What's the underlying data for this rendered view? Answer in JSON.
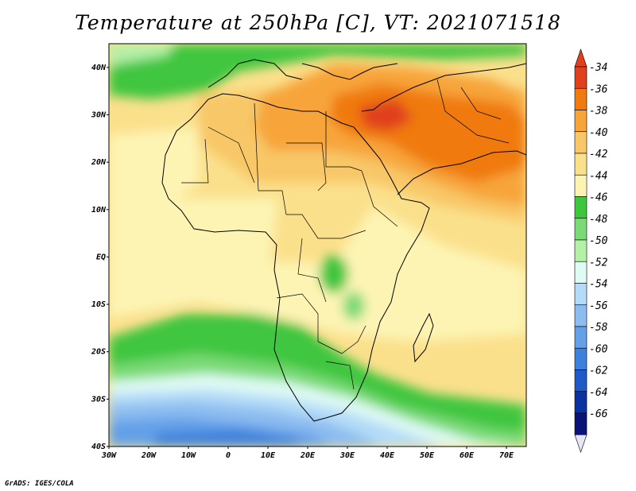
{
  "title": "Temperature at 250hPa [C], VT: 2021071518",
  "credit": "GrADS: IGES/COLA",
  "map": {
    "lon_range": [
      -30,
      75
    ],
    "lat_range": [
      -40,
      45
    ],
    "lat_ticks": [
      {
        "value": 40,
        "label": "40N"
      },
      {
        "value": 30,
        "label": "30N"
      },
      {
        "value": 20,
        "label": "20N"
      },
      {
        "value": 10,
        "label": "10N"
      },
      {
        "value": 0,
        "label": "EQ"
      },
      {
        "value": -10,
        "label": "10S"
      },
      {
        "value": -20,
        "label": "20S"
      },
      {
        "value": -30,
        "label": "30S"
      },
      {
        "value": -40,
        "label": "40S"
      }
    ],
    "lon_ticks": [
      {
        "value": -30,
        "label": "30W"
      },
      {
        "value": -20,
        "label": "20W"
      },
      {
        "value": -10,
        "label": "10W"
      },
      {
        "value": 0,
        "label": "0"
      },
      {
        "value": 10,
        "label": "10E"
      },
      {
        "value": 20,
        "label": "20E"
      },
      {
        "value": 30,
        "label": "30E"
      },
      {
        "value": 40,
        "label": "40E"
      },
      {
        "value": 50,
        "label": "50E"
      },
      {
        "value": 60,
        "label": "60E"
      },
      {
        "value": 70,
        "label": "70E"
      }
    ]
  },
  "colorbar": {
    "labels": [
      "-34",
      "-36",
      "-38",
      "-40",
      "-42",
      "-44",
      "-46",
      "-48",
      "-50",
      "-52",
      "-54",
      "-56",
      "-58",
      "-60",
      "-62",
      "-64",
      "-66"
    ],
    "colors": [
      "#e0401e",
      "#f07a0f",
      "#f7a53a",
      "#f8c768",
      "#fbe08c",
      "#fdf4b4",
      "#3fc63f",
      "#7ada76",
      "#b4f0a8",
      "#e0fbf4",
      "#b4dcf8",
      "#8cbcf0",
      "#64a0e8",
      "#3c82dc",
      "#1e5ac8",
      "#0a32a0",
      "#0a1478"
    ],
    "top_cap_color": "#e0401e",
    "bottom_cap_color": "#e8e4fa"
  }
}
